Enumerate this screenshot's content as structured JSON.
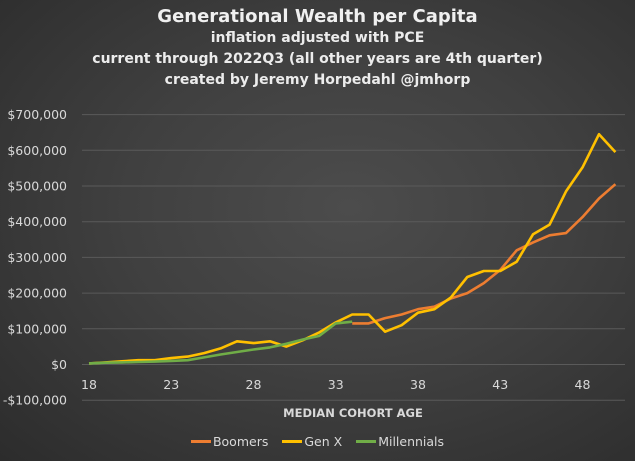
{
  "title": "Generational Wealth per Capita",
  "subtitle_lines": [
    "inflation adjusted with PCE",
    "current through 2022Q3 (all other years are 4th quarter)",
    "created by Jeremy Horpedahl @jmhorp"
  ],
  "colors": {
    "boomers": "#ed7d31",
    "genx": "#ffc000",
    "millennials": "#70ad47",
    "grid": "#5a5a5a"
  },
  "chart_data": {
    "type": "line",
    "title": "Generational Wealth per Capita",
    "subtitle": "inflation adjusted with PCE; current through 2022Q3 (all other years are 4th quarter); created by Jeremy Horpedahl @jmhorp",
    "xlabel": "MEDIAN COHORT AGE",
    "ylabel": "",
    "x_ticks": [
      "18",
      "23",
      "28",
      "33",
      "38",
      "43",
      "48"
    ],
    "y_ticks": [
      "$700,000",
      "$600,000",
      "$500,000",
      "$400,000",
      "$300,000",
      "$200,000",
      "$100,000",
      "$0",
      "-$100,000"
    ],
    "ylim": [
      -100000,
      700000
    ],
    "xlim": [
      18,
      50
    ],
    "grid": true,
    "legend_position": "bottom",
    "series": [
      {
        "name": "Boomers",
        "color": "#ed7d31",
        "x": [
          34,
          35,
          36,
          37,
          38,
          39,
          40,
          41,
          42,
          43,
          44,
          45,
          46,
          47,
          48,
          49,
          50
        ],
        "values": [
          115000,
          115000,
          130000,
          140000,
          155000,
          162000,
          185000,
          200000,
          228000,
          265000,
          320000,
          342000,
          362000,
          368000,
          413000,
          465000,
          505000
        ]
      },
      {
        "name": "Gen X",
        "color": "#ffc000",
        "x": [
          18,
          19,
          20,
          21,
          22,
          23,
          24,
          25,
          26,
          27,
          28,
          29,
          30,
          31,
          32,
          33,
          34,
          35,
          36,
          37,
          38,
          39,
          40,
          41,
          42,
          43,
          44,
          45,
          46,
          47,
          48,
          49,
          50
        ],
        "values": [
          3000,
          6000,
          9000,
          12000,
          12000,
          18000,
          22000,
          32000,
          45000,
          65000,
          60000,
          65000,
          50000,
          68000,
          90000,
          118000,
          140000,
          140000,
          92000,
          110000,
          145000,
          155000,
          188000,
          245000,
          262000,
          262000,
          288000,
          365000,
          392000,
          485000,
          552000,
          645000,
          595000
        ]
      },
      {
        "name": "Millennials",
        "color": "#70ad47",
        "x": [
          18,
          19,
          20,
          21,
          22,
          23,
          24,
          25,
          26,
          27,
          28,
          29,
          30,
          31,
          32,
          33,
          34
        ],
        "values": [
          3000,
          5000,
          6000,
          7000,
          8000,
          10000,
          12000,
          20000,
          28000,
          35000,
          42000,
          48000,
          58000,
          70000,
          80000,
          115000,
          120000
        ]
      }
    ]
  }
}
